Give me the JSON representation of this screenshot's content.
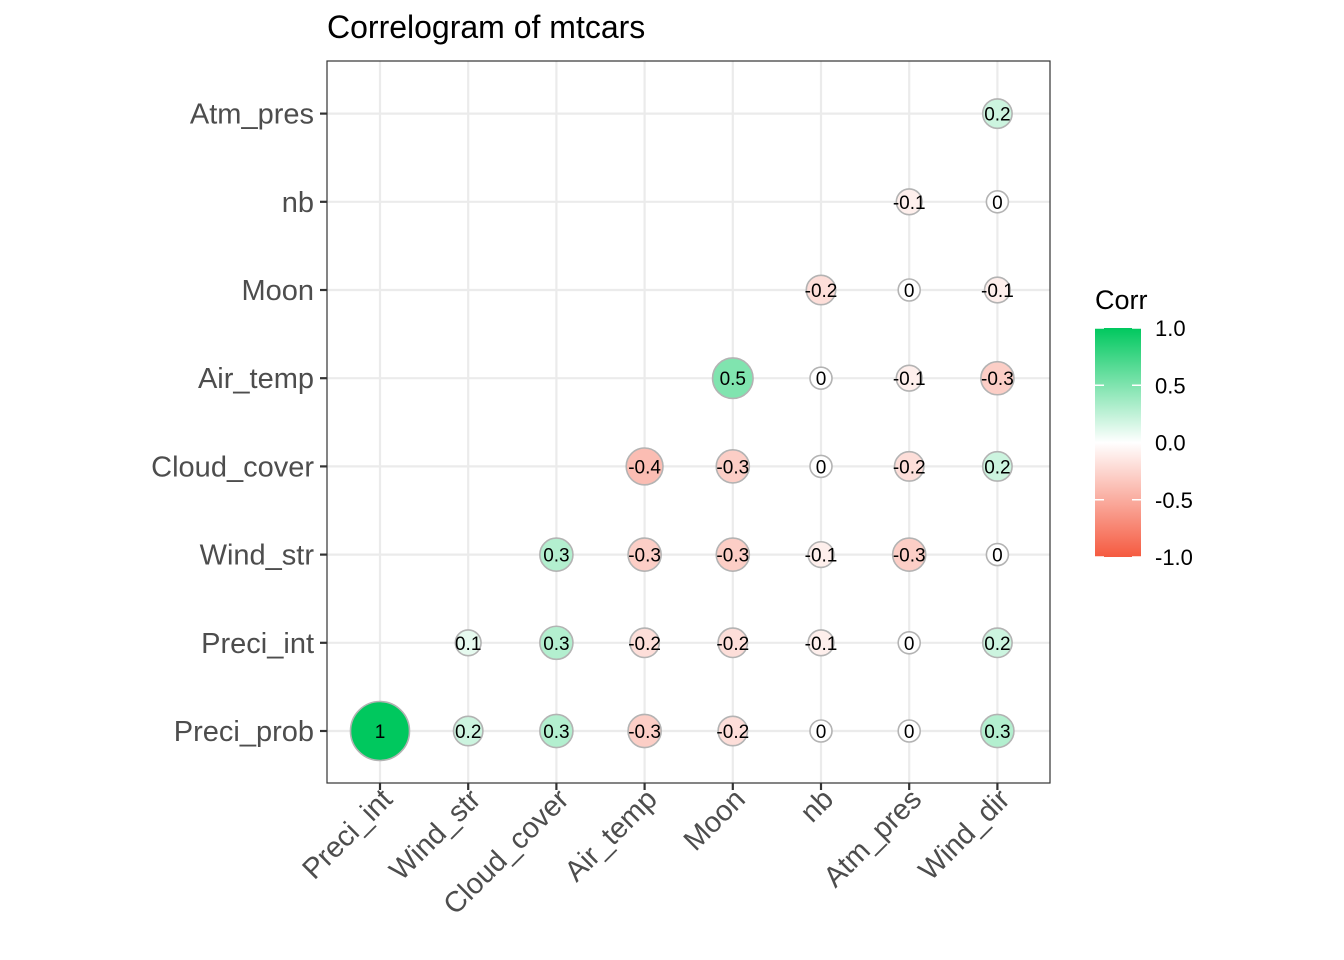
{
  "chart_data": {
    "type": "scatter",
    "subtype": "correlogram",
    "title": "Correlogram of mtcars",
    "x_categories": [
      "Preci_int",
      "Wind_str",
      "Cloud_cover",
      "Air_temp",
      "Moon",
      "nb",
      "Atm_pres",
      "Wind_dir"
    ],
    "y_categories": [
      "Preci_prob",
      "Preci_int",
      "Wind_str",
      "Cloud_cover",
      "Air_temp",
      "Moon",
      "nb",
      "Atm_pres"
    ],
    "cells": [
      {
        "x": "Preci_int",
        "y": "Preci_prob",
        "value": 1,
        "label": "1"
      },
      {
        "x": "Wind_str",
        "y": "Preci_prob",
        "value": 0.2,
        "label": "0.2"
      },
      {
        "x": "Cloud_cover",
        "y": "Preci_prob",
        "value": 0.3,
        "label": "0.3"
      },
      {
        "x": "Air_temp",
        "y": "Preci_prob",
        "value": -0.3,
        "label": "-0.3"
      },
      {
        "x": "Moon",
        "y": "Preci_prob",
        "value": -0.2,
        "label": "-0.2"
      },
      {
        "x": "nb",
        "y": "Preci_prob",
        "value": 0,
        "label": "0"
      },
      {
        "x": "Atm_pres",
        "y": "Preci_prob",
        "value": 0,
        "label": "0"
      },
      {
        "x": "Wind_dir",
        "y": "Preci_prob",
        "value": 0.3,
        "label": "0.3"
      },
      {
        "x": "Wind_str",
        "y": "Preci_int",
        "value": 0.1,
        "label": "0.1"
      },
      {
        "x": "Cloud_cover",
        "y": "Preci_int",
        "value": 0.3,
        "label": "0.3"
      },
      {
        "x": "Air_temp",
        "y": "Preci_int",
        "value": -0.2,
        "label": "-0.2"
      },
      {
        "x": "Moon",
        "y": "Preci_int",
        "value": -0.2,
        "label": "-0.2"
      },
      {
        "x": "nb",
        "y": "Preci_int",
        "value": -0.1,
        "label": "-0.1"
      },
      {
        "x": "Atm_pres",
        "y": "Preci_int",
        "value": 0,
        "label": "0"
      },
      {
        "x": "Wind_dir",
        "y": "Preci_int",
        "value": 0.2,
        "label": "0.2"
      },
      {
        "x": "Cloud_cover",
        "y": "Wind_str",
        "value": 0.3,
        "label": "0.3"
      },
      {
        "x": "Air_temp",
        "y": "Wind_str",
        "value": -0.3,
        "label": "-0.3"
      },
      {
        "x": "Moon",
        "y": "Wind_str",
        "value": -0.3,
        "label": "-0.3"
      },
      {
        "x": "nb",
        "y": "Wind_str",
        "value": -0.1,
        "label": "-0.1"
      },
      {
        "x": "Atm_pres",
        "y": "Wind_str",
        "value": -0.3,
        "label": "-0.3"
      },
      {
        "x": "Wind_dir",
        "y": "Wind_str",
        "value": 0,
        "label": "0"
      },
      {
        "x": "Air_temp",
        "y": "Cloud_cover",
        "value": -0.4,
        "label": "-0.4"
      },
      {
        "x": "Moon",
        "y": "Cloud_cover",
        "value": -0.3,
        "label": "-0.3"
      },
      {
        "x": "nb",
        "y": "Cloud_cover",
        "value": 0,
        "label": "0"
      },
      {
        "x": "Atm_pres",
        "y": "Cloud_cover",
        "value": -0.2,
        "label": "-0.2"
      },
      {
        "x": "Wind_dir",
        "y": "Cloud_cover",
        "value": 0.2,
        "label": "0.2"
      },
      {
        "x": "Moon",
        "y": "Air_temp",
        "value": 0.5,
        "label": "0.5"
      },
      {
        "x": "nb",
        "y": "Air_temp",
        "value": 0,
        "label": "0"
      },
      {
        "x": "Atm_pres",
        "y": "Air_temp",
        "value": -0.1,
        "label": "-0.1"
      },
      {
        "x": "Wind_dir",
        "y": "Air_temp",
        "value": -0.3,
        "label": "-0.3"
      },
      {
        "x": "nb",
        "y": "Moon",
        "value": -0.2,
        "label": "-0.2"
      },
      {
        "x": "Atm_pres",
        "y": "Moon",
        "value": 0,
        "label": "0"
      },
      {
        "x": "Wind_dir",
        "y": "Moon",
        "value": -0.1,
        "label": "-0.1"
      },
      {
        "x": "Atm_pres",
        "y": "nb",
        "value": -0.1,
        "label": "-0.1"
      },
      {
        "x": "Wind_dir",
        "y": "nb",
        "value": 0,
        "label": "0"
      },
      {
        "x": "Wind_dir",
        "y": "Atm_pres",
        "value": 0.2,
        "label": "0.2"
      }
    ],
    "legend": {
      "title": "Corr",
      "ticks": [
        "1.0",
        "0.5",
        "0.0",
        "-0.5",
        "-1.0"
      ],
      "tick_values": [
        1.0,
        0.5,
        0.0,
        -0.5,
        -1.0
      ],
      "range": [
        -1,
        1
      ],
      "placement": "right"
    },
    "colors": {
      "high": "#00c85e",
      "mid": "#ffffff",
      "low": "#f55a40",
      "outline": "#b3b3b3",
      "grid": "#ebebeb",
      "panel_border": "#333333"
    },
    "grid": true
  }
}
